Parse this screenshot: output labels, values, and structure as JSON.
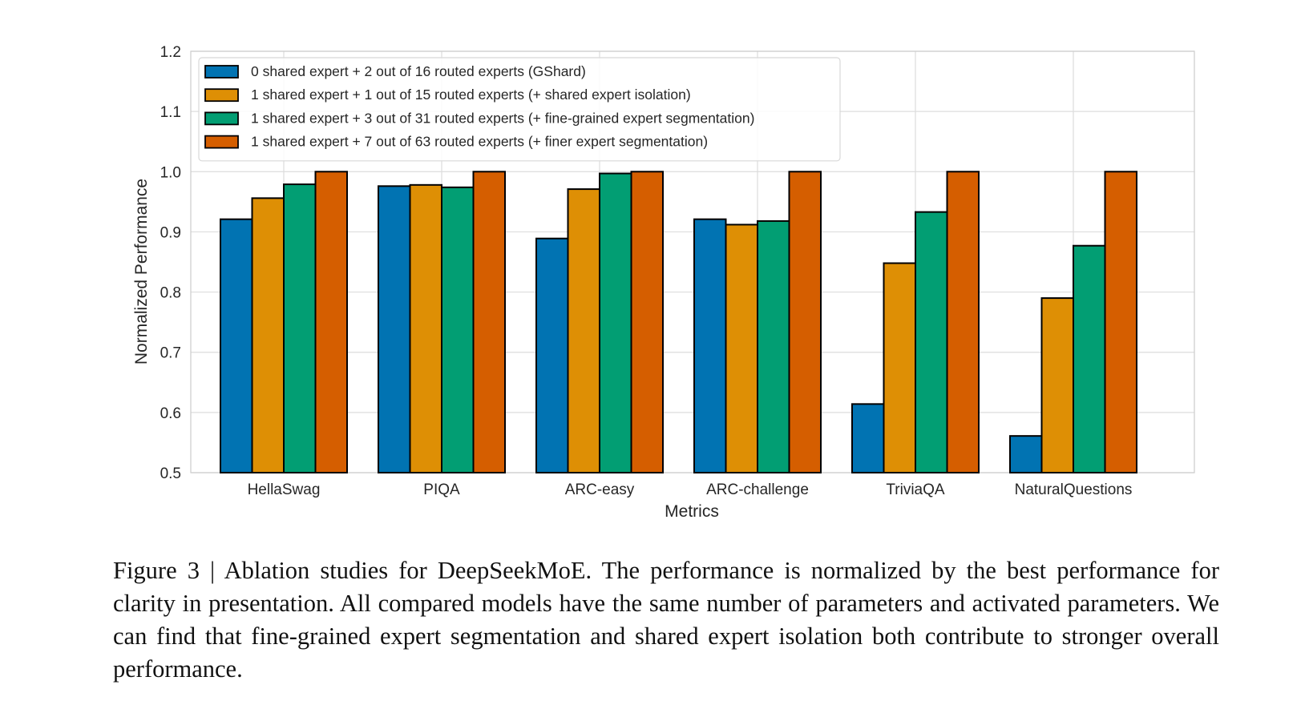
{
  "chart_data": {
    "type": "bar",
    "title": "",
    "xlabel": "Metrics",
    "ylabel": "Normalized Performance",
    "ylim": [
      0.5,
      1.2
    ],
    "yticks": [
      "0.5",
      "0.6",
      "0.7",
      "0.8",
      "0.9",
      "1.0",
      "1.1",
      "1.2"
    ],
    "grid": true,
    "legend_position": "top-left",
    "categories": [
      "HellaSwag",
      "PIQA",
      "ARC-easy",
      "ARC-challenge",
      "TriviaQA",
      "NaturalQuestions"
    ],
    "series": [
      {
        "name": "0 shared expert + 2 out of 16 routed experts (GShard)",
        "color": "#0173b2",
        "values": [
          0.921,
          0.976,
          0.889,
          0.921,
          0.614,
          0.561
        ]
      },
      {
        "name": "1 shared expert + 1 out of 15 routed experts (+ shared expert isolation)",
        "color": "#de8f05",
        "values": [
          0.956,
          0.978,
          0.971,
          0.912,
          0.848,
          0.79
        ]
      },
      {
        "name": "1 shared expert + 3 out of 31 routed experts (+ fine-grained expert segmentation)",
        "color": "#029e73",
        "values": [
          0.979,
          0.974,
          0.997,
          0.918,
          0.933,
          0.877
        ]
      },
      {
        "name": "1 shared expert + 7 out of 63 routed experts (+ finer expert segmentation)",
        "color": "#d55e00",
        "values": [
          1.0,
          1.0,
          1.0,
          1.0,
          1.0,
          1.0
        ]
      }
    ]
  },
  "caption": "Figure 3 | Ablation studies for DeepSeekMoE. The performance is normalized by the best performance for clarity in presentation. All compared models have the same number of parameters and activated parameters. We can find that fine-grained expert segmentation and shared expert isolation both contribute to stronger overall performance."
}
